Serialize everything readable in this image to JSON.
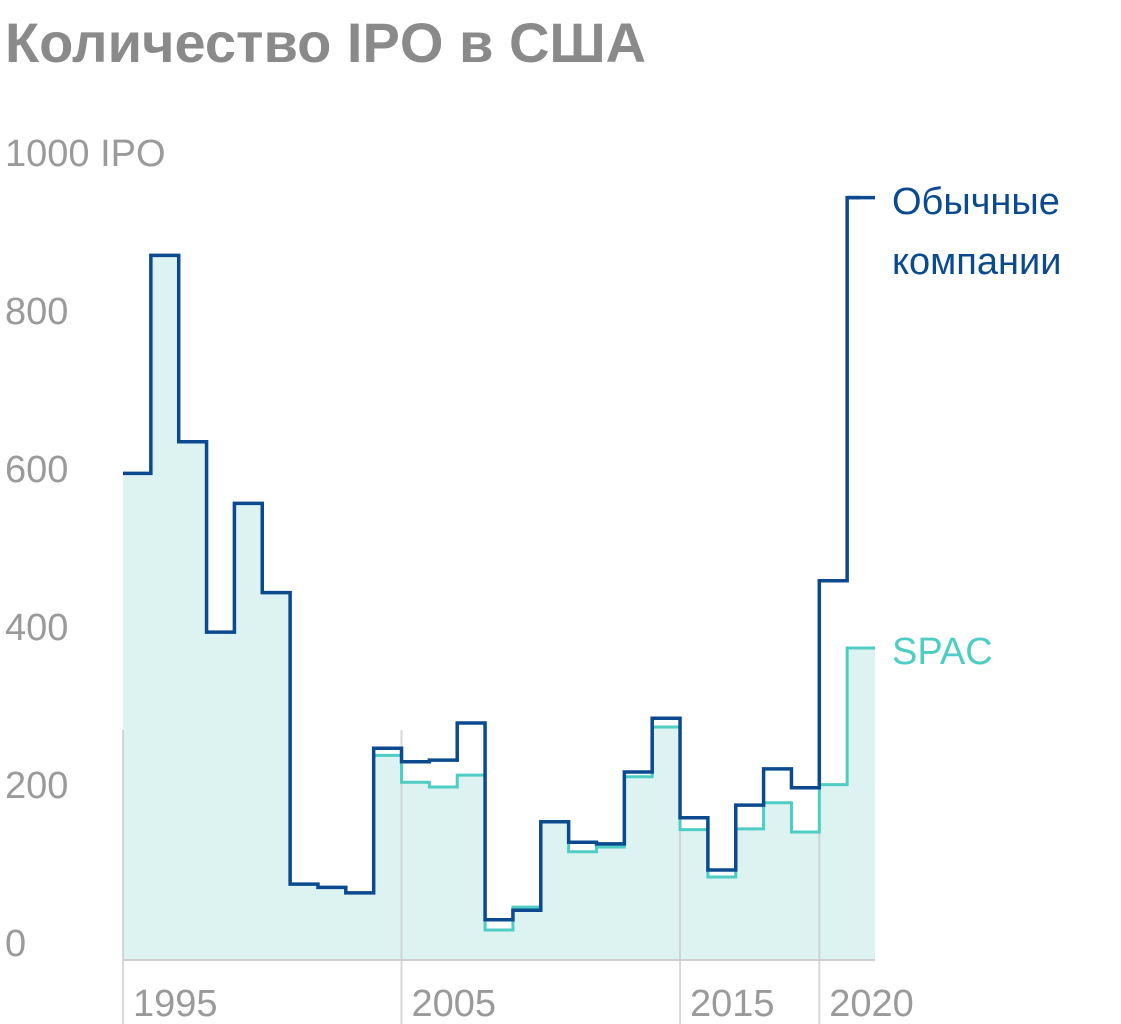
{
  "chart_data": {
    "type": "step",
    "title": "Количество IPO в США",
    "x": [
      1995,
      1996,
      1997,
      1998,
      1999,
      2000,
      2001,
      2002,
      2003,
      2004,
      2005,
      2006,
      2007,
      2008,
      2009,
      2010,
      2011,
      2012,
      2013,
      2014,
      2015,
      2016,
      2017,
      2018,
      2019,
      2020,
      2021
    ],
    "series": [
      {
        "name": "SPAC",
        "color": "#4ecdc4",
        "area_color": "#dcf3f1",
        "values": [
          616,
          892,
          656,
          415,
          578,
          465,
          96,
          92,
          85,
          259,
          225,
          219,
          234,
          38,
          67,
          175,
          137,
          143,
          232,
          295,
          165,
          105,
          166,
          199,
          162,
          222,
          395
        ]
      },
      {
        "name": "Обычные компании",
        "color": "#0b4a8f",
        "values": [
          616,
          892,
          656,
          415,
          578,
          465,
          96,
          92,
          85,
          268,
          251,
          253,
          300,
          51,
          63,
          175,
          149,
          147,
          238,
          306,
          180,
          114,
          196,
          242,
          218,
          480,
          965
        ]
      }
    ],
    "xlim": [
      1995,
      2022
    ],
    "xticks": [
      1995,
      2005,
      2015,
      2020
    ],
    "ylim": [
      0,
      1000
    ],
    "yticks": [
      0,
      200,
      400,
      600,
      800,
      {
        "value": 1000,
        "label": "1000 IPO"
      }
    ]
  }
}
